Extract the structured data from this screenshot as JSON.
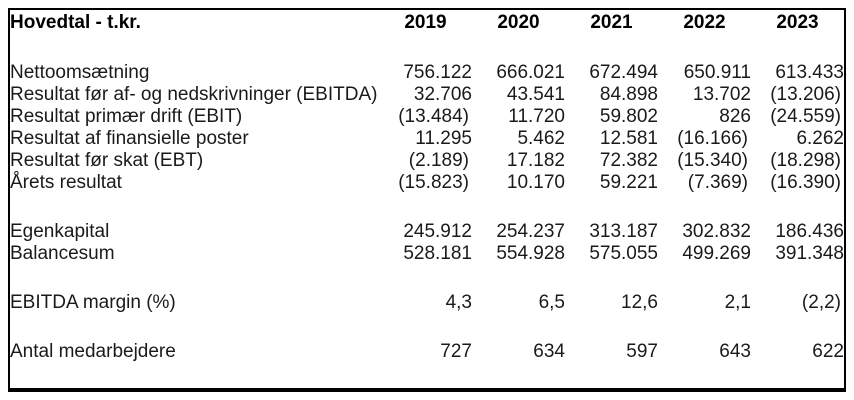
{
  "table": {
    "title": "Hovedtal - t.kr.",
    "columns": [
      "2019",
      "2020",
      "2021",
      "2022",
      "2023"
    ],
    "sections": [
      {
        "rows": [
          {
            "label": "Nettoomsætning",
            "values": [
              "756.122",
              "666.021",
              "672.494",
              "650.911",
              "613.433"
            ]
          },
          {
            "label": "Resultat før af- og nedskrivninger (EBITDA)",
            "values": [
              "32.706",
              "43.541",
              "84.898",
              "13.702",
              "(13.206)"
            ]
          },
          {
            "label": "Resultat primær drift (EBIT)",
            "values": [
              "(13.484)",
              "11.720",
              "59.802",
              "826",
              "(24.559)"
            ]
          },
          {
            "label": "Resultat af finansielle poster",
            "values": [
              "11.295",
              "5.462",
              "12.581",
              "(16.166)",
              "6.262"
            ]
          },
          {
            "label": "Resultat før skat (EBT)",
            "values": [
              "(2.189)",
              "17.182",
              "72.382",
              "(15.340)",
              "(18.298)"
            ]
          },
          {
            "label": "Årets resultat",
            "values": [
              "(15.823)",
              "10.170",
              "59.221",
              "(7.369)",
              "(16.390)"
            ]
          }
        ]
      },
      {
        "rows": [
          {
            "label": "Egenkapital",
            "values": [
              "245.912",
              "254.237",
              "313.187",
              "302.832",
              "186.436"
            ]
          },
          {
            "label": "Balancesum",
            "values": [
              "528.181",
              "554.928",
              "575.055",
              "499.269",
              "391.348"
            ]
          }
        ]
      },
      {
        "rows": [
          {
            "label": "EBITDA margin (%)",
            "values": [
              "4,3",
              "6,5",
              "12,6",
              "2,1",
              "(2,2)"
            ]
          }
        ]
      },
      {
        "rows": [
          {
            "label": "Antal medarbejdere",
            "values": [
              "727",
              "634",
              "597",
              "643",
              "622"
            ]
          }
        ]
      }
    ],
    "colors": {
      "border": "#000000",
      "text": "#1a1a1a",
      "background": "#ffffff"
    }
  }
}
